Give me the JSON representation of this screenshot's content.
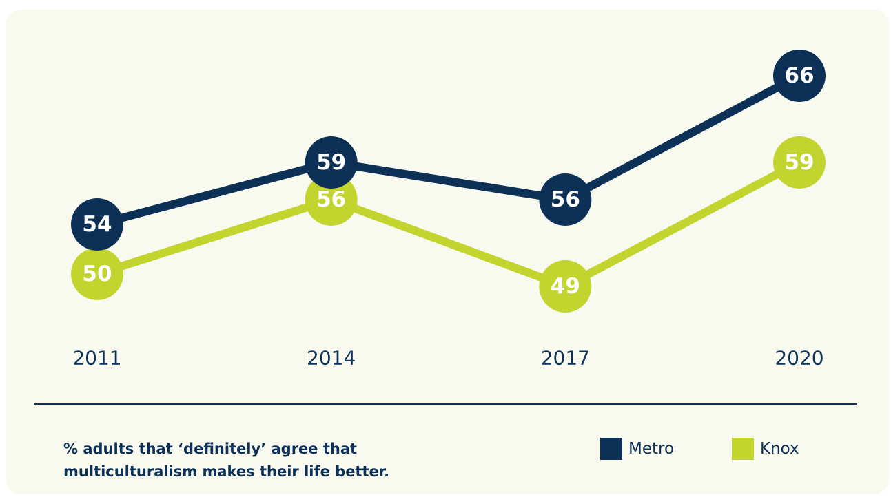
{
  "chart_data": {
    "type": "line",
    "caption": "% adults that ‘definitely’ agree that multiculturalism makes their life better.",
    "categories": [
      "2011",
      "2014",
      "2017",
      "2020"
    ],
    "series": [
      {
        "name": "Metro",
        "color": "#0d3057",
        "values": [
          54,
          59,
          56,
          66
        ]
      },
      {
        "name": "Knox",
        "color": "#c2d52f",
        "values": [
          50,
          56,
          49,
          59
        ]
      }
    ]
  }
}
